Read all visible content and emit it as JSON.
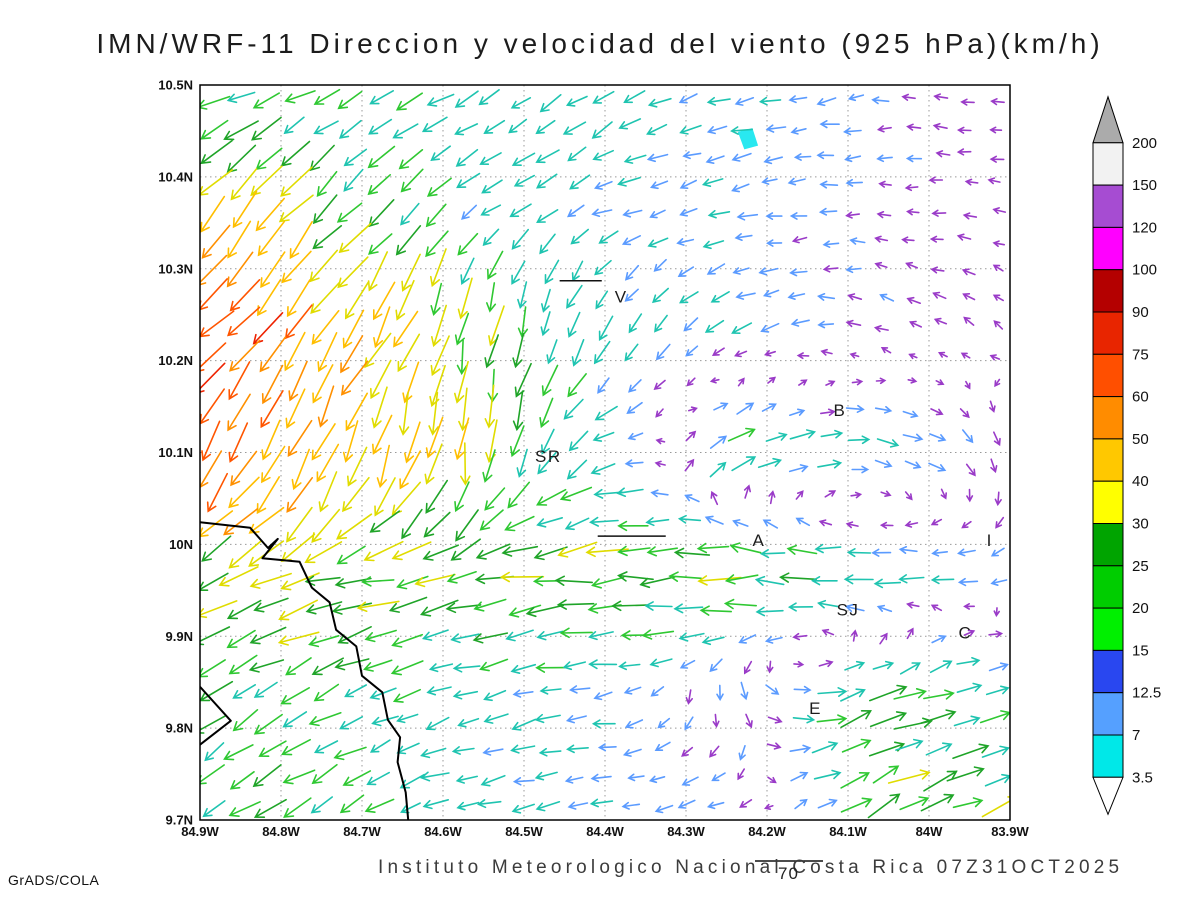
{
  "title": "IMN/WRF-11 Direccion y velocidad del viento (925 hPa)(km/h)",
  "footer": {
    "institute_line": "Instituto Meteorologico Nacional Costa Rica 07Z31OCT2025",
    "credit": "GrADS/COLA"
  },
  "chart_data": {
    "type": "vector-field-map",
    "title": "IMN/WRF-11 Direccion y velocidad del viento (925 hPa)(km/h)",
    "variable": "wind direction and speed",
    "level": "925 hPa",
    "units": "km/h",
    "valid_time": "07Z31OCT2025",
    "source": "IMN/WRF-11",
    "lon_range": [
      84.9,
      83.9
    ],
    "lat_range": [
      9.7,
      10.5
    ],
    "lon_unit": "degW",
    "lat_unit": "degN",
    "grid": "dotted",
    "x_tick_values": [
      84.9,
      84.8,
      84.7,
      84.6,
      84.5,
      84.4,
      84.3,
      84.2,
      84.1,
      84.0,
      83.9
    ],
    "x_tick_labels": [
      "84.9W",
      "84.8W",
      "84.7W",
      "84.6W",
      "84.5W",
      "84.4W",
      "84.3W",
      "84.2W",
      "84.1W",
      "84W",
      "83.9W"
    ],
    "y_tick_values": [
      10.5,
      10.4,
      10.3,
      10.2,
      10.1,
      10.0,
      9.9,
      9.8,
      9.7
    ],
    "y_tick_labels": [
      "10.5N",
      "10.4N",
      "10.3N",
      "10.2N",
      "10.1N",
      "10N",
      "9.9N",
      "9.8N",
      "9.7N"
    ],
    "wind_field": {
      "comment": "estimated control grid read from the arrow field; direction = math angle deg (0=E,90=N), speed km/h",
      "lons_w": [
        84.9,
        84.733,
        84.567,
        84.4,
        84.233,
        84.067,
        83.9
      ],
      "lats_n": [
        10.5,
        10.367,
        10.233,
        10.1,
        9.967,
        9.833,
        9.7
      ],
      "direction_deg": [
        [
          200,
          205,
          210,
          215,
          195,
          185,
          170
        ],
        [
          230,
          225,
          215,
          200,
          190,
          180,
          170
        ],
        [
          225,
          235,
          260,
          250,
          200,
          160,
          140
        ],
        [
          240,
          250,
          265,
          200,
          30,
          350,
          290
        ],
        [
          200,
          195,
          190,
          185,
          180,
          175,
          200
        ],
        [
          215,
          205,
          195,
          190,
          300,
          20,
          10
        ],
        [
          215,
          210,
          195,
          185,
          200,
          30,
          20
        ]
      ],
      "speed_kmh": [
        [
          18,
          18,
          16,
          15,
          12,
          8,
          5
        ],
        [
          45,
          25,
          15,
          12,
          10,
          6,
          5
        ],
        [
          70,
          50,
          30,
          15,
          12,
          6,
          5
        ],
        [
          75,
          45,
          35,
          15,
          22,
          15,
          8
        ],
        [
          30,
          30,
          25,
          28,
          30,
          18,
          8
        ],
        [
          22,
          20,
          15,
          12,
          10,
          25,
          20
        ],
        [
          22,
          20,
          14,
          12,
          10,
          28,
          25
        ]
      ]
    },
    "arrow_palette": [
      {
        "max": 7,
        "color": "#9A3BC8"
      },
      {
        "max": 12.5,
        "color": "#5B9BFF"
      },
      {
        "max": 20,
        "color": "#1FC4B0"
      },
      {
        "max": 25,
        "color": "#2FC832"
      },
      {
        "max": 30,
        "color": "#1FA428"
      },
      {
        "max": 40,
        "color": "#E0DC00"
      },
      {
        "max": 50,
        "color": "#FFBE00"
      },
      {
        "max": 60,
        "color": "#FF9000"
      },
      {
        "max": 75,
        "color": "#FF5500"
      },
      {
        "max": 90,
        "color": "#EE2200"
      },
      {
        "max": 100,
        "color": "#C80028"
      },
      {
        "max": 9999,
        "color": "#E800C8"
      }
    ],
    "coastlines": [
      [
        [
          84.9,
          10.024
        ],
        [
          84.838,
          10.018
        ],
        [
          84.816,
          9.996
        ],
        [
          84.804,
          10.006
        ],
        [
          84.823,
          9.985
        ],
        [
          84.777,
          9.981
        ],
        [
          84.762,
          9.953
        ],
        [
          84.74,
          9.937
        ],
        [
          84.732,
          9.907
        ],
        [
          84.707,
          9.889
        ],
        [
          84.7,
          9.857
        ],
        [
          84.675,
          9.839
        ],
        [
          84.668,
          9.809
        ],
        [
          84.653,
          9.79
        ],
        [
          84.656,
          9.763
        ],
        [
          84.646,
          9.73
        ],
        [
          84.643,
          9.7
        ]
      ],
      [
        [
          84.9,
          9.845
        ],
        [
          84.862,
          9.808
        ],
        [
          84.9,
          9.782
        ]
      ]
    ],
    "markers": [
      {
        "label": "V",
        "lon": 84.38,
        "lat": 10.27
      },
      {
        "label": "B",
        "lon": 84.11,
        "lat": 10.146
      },
      {
        "label": "SR",
        "lon": 84.47,
        "lat": 10.096
      },
      {
        "label": "A",
        "lon": 84.21,
        "lat": 10.005
      },
      {
        "label": "SJ",
        "lon": 84.1,
        "lat": 9.929
      },
      {
        "label": "C",
        "lon": 83.955,
        "lat": 9.904
      },
      {
        "label": "E",
        "lon": 84.14,
        "lat": 9.822
      },
      {
        "label": "I",
        "lon": 83.925,
        "lat": 10.005
      }
    ],
    "lines": [
      {
        "from": [
          84.456,
          10.287
        ],
        "to": [
          84.404,
          10.287
        ]
      },
      {
        "from": [
          84.409,
          10.009
        ],
        "to": [
          84.325,
          10.009
        ]
      }
    ],
    "patches": [
      {
        "color": "#29E8F0",
        "points": [
          [
            84.236,
            10.449
          ],
          [
            84.218,
            10.453
          ],
          [
            84.211,
            10.434
          ],
          [
            84.228,
            10.43
          ]
        ]
      }
    ],
    "legend": {
      "labels_top_to_bottom": [
        "200",
        "150",
        "120",
        "100",
        "90",
        "75",
        "60",
        "50",
        "40",
        "30",
        "25",
        "20",
        "15",
        "12.5",
        "7",
        "3.5"
      ],
      "band_colors_top_to_bottom": [
        "#F2F2F2",
        "#A64CD2",
        "#FF00FF",
        "#B40000",
        "#E82500",
        "#FF4F00",
        "#FF8C00",
        "#FFC800",
        "#FFFF00",
        "#00A400",
        "#00CD00",
        "#00F000",
        "#2947F0",
        "#55A0FF",
        "#00E8E8"
      ],
      "above_color": "#ABABAB",
      "below_color": "#FFFFFF"
    },
    "reference_vector": {
      "speed_kmh": 70,
      "label": "70"
    }
  }
}
